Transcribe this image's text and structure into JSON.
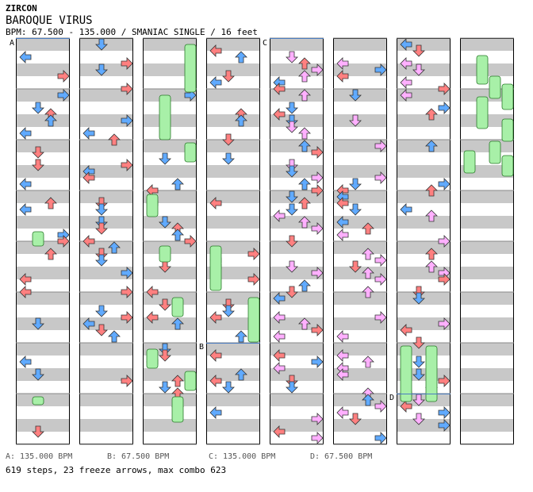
{
  "artist": "ZIRCON",
  "title": "BAROQUE VIRUS",
  "subtitle": "BPM: 67.500 - 135.000 / SMANIAC SINGLE / 16 feet",
  "markers": [
    {
      "label": "A",
      "bpm_text": "A: 135.000 BPM",
      "bpm": 135.0
    },
    {
      "label": "B",
      "bpm_text": "B: 67.500 BPM",
      "bpm": 67.5
    },
    {
      "label": "C",
      "bpm_text": "C: 135.000 BPM",
      "bpm": 135.0
    },
    {
      "label": "D",
      "bpm_text": "D: 67.500 BPM",
      "bpm": 67.5
    }
  ],
  "summary": "619 steps, 23 freeze arrows, max combo 623",
  "colors": {
    "stripe": "#c8c8c8",
    "column_border": "#000000",
    "arrow_red": "#ff8080",
    "arrow_blue": "#60aaff",
    "arrow_pink": "#ffb0ff",
    "freeze_green": "#a8f0a8",
    "bpm_line": "#4a7cc0"
  },
  "icons": [
    "arrow-left-icon",
    "arrow-down-icon",
    "arrow-up-icon",
    "arrow-right-icon",
    "freeze-arrow-icon"
  ],
  "columns": 8
}
